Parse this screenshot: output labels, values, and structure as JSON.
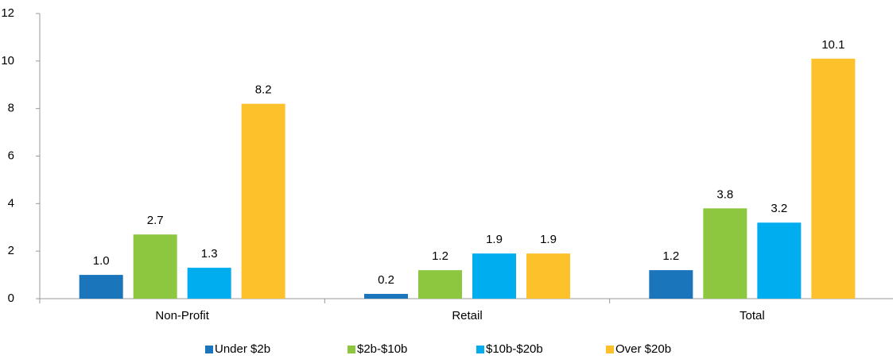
{
  "chart_data": {
    "type": "bar",
    "categories": [
      "Non-Profit",
      "Retail",
      "Total"
    ],
    "series": [
      {
        "name": "Under $2b",
        "color": "#1a75bb",
        "values": [
          1.0,
          0.2,
          1.2
        ],
        "value_labels": [
          "1.0",
          "0.2",
          "1.2"
        ]
      },
      {
        "name": "$2b-$10b",
        "color": "#8dc63f",
        "values": [
          2.7,
          1.2,
          3.8
        ],
        "value_labels": [
          "2.7",
          "1.2",
          "3.8"
        ]
      },
      {
        "name": "$10b-$20b",
        "color": "#00aeef",
        "values": [
          1.3,
          1.9,
          3.2
        ],
        "value_labels": [
          "1.3",
          "1.9",
          "3.2"
        ]
      },
      {
        "name": "Over $20b",
        "color": "#fdc12b",
        "values": [
          8.2,
          1.9,
          10.1
        ],
        "value_labels": [
          "8.2",
          "1.9",
          "10.1"
        ]
      }
    ],
    "ylim": [
      0,
      12
    ],
    "yticks": [
      0,
      2,
      4,
      6,
      8,
      10,
      12
    ],
    "legend": "bottom"
  }
}
